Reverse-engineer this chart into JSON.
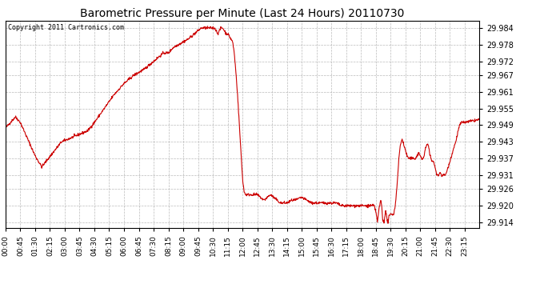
{
  "title": "Barometric Pressure per Minute (Last 24 Hours) 20110730",
  "copyright": "Copyright 2011 Cartronics.com",
  "line_color": "#cc0000",
  "bg_color": "#ffffff",
  "grid_color": "#aaaaaa",
  "y_ticks": [
    29.914,
    29.92,
    29.926,
    29.931,
    29.937,
    29.943,
    29.949,
    29.955,
    29.961,
    29.967,
    29.972,
    29.978,
    29.984
  ],
  "ylim": [
    29.912,
    29.9865
  ],
  "x_labels": [
    "00:00",
    "00:45",
    "01:30",
    "02:15",
    "03:00",
    "03:45",
    "04:30",
    "05:15",
    "06:00",
    "06:45",
    "07:30",
    "08:15",
    "09:00",
    "09:45",
    "10:30",
    "11:15",
    "12:00",
    "12:45",
    "13:30",
    "14:15",
    "15:00",
    "15:45",
    "16:30",
    "17:15",
    "18:00",
    "18:45",
    "19:30",
    "20:15",
    "21:00",
    "21:45",
    "22:30",
    "23:15"
  ],
  "control_points": [
    [
      0,
      29.948
    ],
    [
      30,
      29.952
    ],
    [
      45,
      29.95
    ],
    [
      60,
      29.946
    ],
    [
      90,
      29.938
    ],
    [
      110,
      29.934
    ],
    [
      130,
      29.937
    ],
    [
      150,
      29.94
    ],
    [
      170,
      29.943
    ],
    [
      190,
      29.944
    ],
    [
      210,
      29.945
    ],
    [
      230,
      29.946
    ],
    [
      250,
      29.947
    ],
    [
      270,
      29.95
    ],
    [
      300,
      29.955
    ],
    [
      330,
      29.96
    ],
    [
      360,
      29.964
    ],
    [
      390,
      29.967
    ],
    [
      420,
      29.969
    ],
    [
      440,
      29.971
    ],
    [
      460,
      29.973
    ],
    [
      480,
      29.975
    ],
    [
      495,
      29.975
    ],
    [
      510,
      29.977
    ],
    [
      525,
      29.978
    ],
    [
      540,
      29.979
    ],
    [
      555,
      29.98
    ],
    [
      565,
      29.981
    ],
    [
      575,
      29.982
    ],
    [
      585,
      29.983
    ],
    [
      595,
      29.984
    ],
    [
      610,
      29.984
    ],
    [
      620,
      29.984
    ],
    [
      625,
      29.984
    ],
    [
      630,
      29.984
    ],
    [
      635,
      29.984
    ],
    [
      640,
      29.983
    ],
    [
      645,
      29.982
    ],
    [
      650,
      29.983
    ],
    [
      655,
      29.984
    ],
    [
      660,
      29.984
    ],
    [
      665,
      29.983
    ],
    [
      670,
      29.982
    ],
    [
      675,
      29.982
    ],
    [
      680,
      29.981
    ],
    [
      685,
      29.98
    ],
    [
      690,
      29.979
    ],
    [
      695,
      29.975
    ],
    [
      700,
      29.968
    ],
    [
      705,
      29.96
    ],
    [
      710,
      29.95
    ],
    [
      715,
      29.94
    ],
    [
      720,
      29.93
    ],
    [
      725,
      29.925
    ],
    [
      730,
      29.924
    ],
    [
      735,
      29.924
    ],
    [
      745,
      29.924
    ],
    [
      755,
      29.924
    ],
    [
      765,
      29.924
    ],
    [
      775,
      29.923
    ],
    [
      785,
      29.922
    ],
    [
      795,
      29.923
    ],
    [
      805,
      29.924
    ],
    [
      815,
      29.923
    ],
    [
      825,
      29.922
    ],
    [
      835,
      29.921
    ],
    [
      845,
      29.921
    ],
    [
      855,
      29.921
    ],
    [
      870,
      29.922
    ],
    [
      880,
      29.922
    ],
    [
      900,
      29.923
    ],
    [
      915,
      29.922
    ],
    [
      930,
      29.921
    ],
    [
      945,
      29.921
    ],
    [
      960,
      29.921
    ],
    [
      975,
      29.921
    ],
    [
      990,
      29.921
    ],
    [
      1005,
      29.921
    ],
    [
      1020,
      29.92
    ],
    [
      1035,
      29.92
    ],
    [
      1050,
      29.92
    ],
    [
      1065,
      29.92
    ],
    [
      1080,
      29.92
    ],
    [
      1095,
      29.92
    ],
    [
      1110,
      29.92
    ],
    [
      1120,
      29.92
    ],
    [
      1125,
      29.918
    ],
    [
      1128,
      29.916
    ],
    [
      1130,
      29.914
    ],
    [
      1132,
      29.916
    ],
    [
      1135,
      29.919
    ],
    [
      1140,
      29.922
    ],
    [
      1143,
      29.92
    ],
    [
      1146,
      29.915
    ],
    [
      1150,
      29.914
    ],
    [
      1152,
      29.916
    ],
    [
      1155,
      29.918
    ],
    [
      1158,
      29.916
    ],
    [
      1162,
      29.914
    ],
    [
      1165,
      29.916
    ],
    [
      1170,
      29.917
    ],
    [
      1175,
      29.917
    ],
    [
      1180,
      29.917
    ],
    [
      1185,
      29.921
    ],
    [
      1190,
      29.928
    ],
    [
      1195,
      29.937
    ],
    [
      1200,
      29.942
    ],
    [
      1205,
      29.944
    ],
    [
      1208,
      29.943
    ],
    [
      1210,
      29.942
    ],
    [
      1215,
      29.94
    ],
    [
      1220,
      29.938
    ],
    [
      1225,
      29.937
    ],
    [
      1230,
      29.937
    ],
    [
      1235,
      29.937
    ],
    [
      1240,
      29.937
    ],
    [
      1245,
      29.937
    ],
    [
      1250,
      29.938
    ],
    [
      1255,
      29.939
    ],
    [
      1260,
      29.938
    ],
    [
      1265,
      29.937
    ],
    [
      1270,
      29.937
    ],
    [
      1275,
      29.94
    ],
    [
      1280,
      29.942
    ],
    [
      1285,
      29.942
    ],
    [
      1290,
      29.938
    ],
    [
      1295,
      29.936
    ],
    [
      1300,
      29.936
    ],
    [
      1305,
      29.934
    ],
    [
      1310,
      29.931
    ],
    [
      1315,
      29.931
    ],
    [
      1320,
      29.932
    ],
    [
      1325,
      29.931
    ],
    [
      1330,
      29.931
    ],
    [
      1335,
      29.931
    ],
    [
      1340,
      29.932
    ],
    [
      1345,
      29.934
    ],
    [
      1350,
      29.936
    ],
    [
      1355,
      29.938
    ],
    [
      1360,
      29.94
    ],
    [
      1365,
      29.942
    ],
    [
      1370,
      29.944
    ],
    [
      1375,
      29.947
    ],
    [
      1380,
      29.949
    ],
    [
      1385,
      29.95
    ],
    [
      1390,
      29.95
    ],
    [
      1395,
      29.95
    ],
    [
      1439,
      29.951
    ]
  ]
}
